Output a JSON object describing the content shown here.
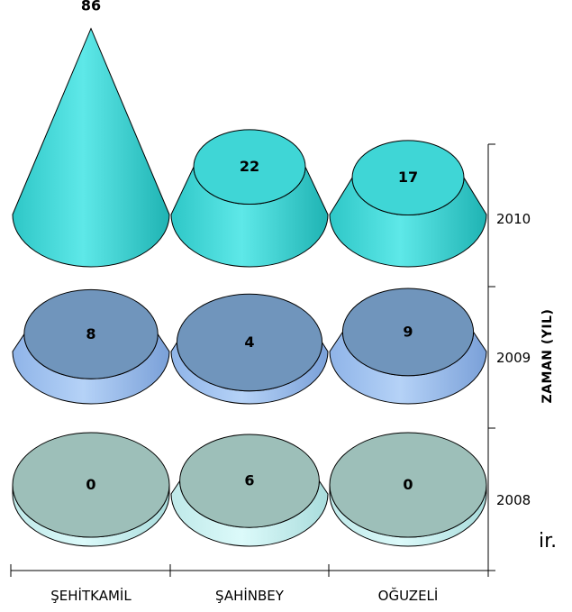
{
  "chart_data": {
    "type": "bar",
    "style": "3d-cone",
    "categories": [
      "ŞEHİTKAMİL",
      "ŞAHİNBEY",
      "OĞUZELİ"
    ],
    "z_categories": [
      "2008",
      "2009",
      "2010"
    ],
    "z_axis_title": "ZAMAN (YIL)",
    "series": [
      {
        "name": "2008",
        "values": [
          0,
          6,
          0
        ],
        "color": "#9dbfb9"
      },
      {
        "name": "2009",
        "values": [
          8,
          4,
          9
        ],
        "color": "#7095bc"
      },
      {
        "name": "2010",
        "values": [
          86,
          22,
          17
        ],
        "color": "#3fd6d6"
      }
    ]
  },
  "overflow_text": "ir."
}
